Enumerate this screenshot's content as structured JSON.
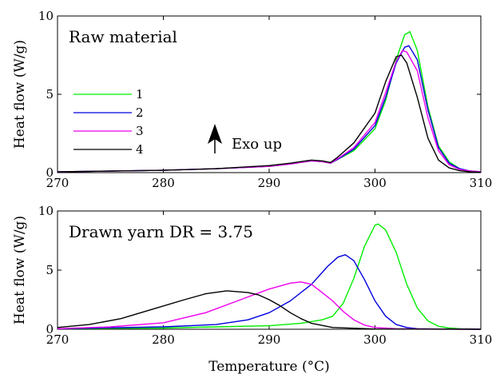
{
  "chart_data": [
    {
      "type": "line",
      "title": "Raw material",
      "xlabel": "",
      "ylabel": "Heat flow (W/g)",
      "xlim": [
        270,
        310
      ],
      "ylim": [
        0,
        10
      ],
      "xticks": [
        "270",
        "280",
        "290",
        "300",
        "310"
      ],
      "yticks": [
        "0",
        "5",
        "10"
      ],
      "legend_position": "left-middle",
      "annotation": "Exo up",
      "grid": false,
      "series": [
        {
          "name": "1",
          "color": "#00ee00",
          "x": [
            270,
            280,
            285,
            290,
            292,
            294,
            295,
            295.8,
            296.5,
            298,
            300,
            301,
            302,
            302.8,
            303.3,
            304,
            305,
            306,
            307,
            308,
            309,
            310
          ],
          "y": [
            0.05,
            0.15,
            0.25,
            0.4,
            0.55,
            0.75,
            0.7,
            0.6,
            0.85,
            1.4,
            2.8,
            4.6,
            7.2,
            8.8,
            9.0,
            7.8,
            4.2,
            1.7,
            0.7,
            0.25,
            0.1,
            0.05
          ]
        },
        {
          "name": "2",
          "color": "#0000dd",
          "x": [
            270,
            280,
            285,
            290,
            292,
            294,
            295,
            295.8,
            296.5,
            298,
            300,
            301,
            302,
            302.8,
            303.2,
            304,
            305,
            306,
            307,
            308,
            309,
            310
          ],
          "y": [
            0.05,
            0.15,
            0.25,
            0.4,
            0.55,
            0.75,
            0.7,
            0.6,
            0.85,
            1.5,
            3.0,
            4.8,
            7.0,
            8.0,
            8.1,
            7.2,
            4.0,
            1.6,
            0.6,
            0.25,
            0.1,
            0.05
          ]
        },
        {
          "name": "3",
          "color": "#ee00ee",
          "x": [
            270,
            280,
            285,
            290,
            292,
            294,
            295,
            295.8,
            296.5,
            298,
            300,
            301,
            302,
            302.6,
            303.0,
            304,
            305,
            306,
            307,
            308,
            309,
            310
          ],
          "y": [
            0.05,
            0.15,
            0.25,
            0.4,
            0.55,
            0.75,
            0.7,
            0.6,
            0.9,
            1.6,
            3.2,
            5.1,
            7.1,
            7.8,
            7.7,
            6.5,
            3.5,
            1.4,
            0.5,
            0.2,
            0.1,
            0.05
          ]
        },
        {
          "name": "4",
          "color": "#000000",
          "x": [
            270,
            280,
            285,
            290,
            292,
            294,
            295,
            295.8,
            296.5,
            298,
            300,
            301,
            302,
            302.5,
            303,
            304,
            305,
            306,
            307,
            308,
            309,
            310
          ],
          "y": [
            0.05,
            0.15,
            0.25,
            0.45,
            0.6,
            0.8,
            0.75,
            0.65,
            1.0,
            1.9,
            3.8,
            5.8,
            7.4,
            7.5,
            7.0,
            4.8,
            2.2,
            0.8,
            0.3,
            0.12,
            0.05,
            0.02
          ]
        }
      ]
    },
    {
      "type": "line",
      "title": "Drawn yarn DR = 3.75",
      "xlabel": "Temperature (°C)",
      "ylabel": "Heat flow (W/g)",
      "xlim": [
        270,
        310
      ],
      "ylim": [
        0,
        10
      ],
      "xticks": [
        "270",
        "280",
        "290",
        "300",
        "310"
      ],
      "yticks": [
        "0",
        "5",
        "10"
      ],
      "grid": false,
      "series": [
        {
          "name": "1",
          "color": "#00ee00",
          "x": [
            270,
            280,
            285,
            290,
            293,
            295,
            296,
            297,
            298,
            299,
            300,
            300.3,
            301,
            302,
            303,
            304,
            305,
            306,
            307,
            308,
            310
          ],
          "y": [
            0.05,
            0.1,
            0.2,
            0.3,
            0.5,
            0.8,
            1.1,
            2.2,
            4.3,
            7.0,
            8.8,
            8.9,
            8.4,
            6.5,
            3.8,
            1.8,
            0.7,
            0.25,
            0.1,
            0.05,
            0.02
          ]
        },
        {
          "name": "2",
          "color": "#0000dd",
          "x": [
            270,
            280,
            285,
            288,
            290,
            292,
            294,
            295.5,
            296.5,
            297.2,
            298,
            299,
            300,
            301,
            302,
            303,
            304,
            306,
            310
          ],
          "y": [
            0.05,
            0.2,
            0.4,
            0.8,
            1.4,
            2.4,
            3.8,
            5.3,
            6.1,
            6.3,
            5.8,
            4.2,
            2.4,
            1.1,
            0.4,
            0.15,
            0.05,
            0.02,
            0.0
          ]
        },
        {
          "name": "3",
          "color": "#ee00ee",
          "x": [
            270,
            275,
            280,
            284,
            287,
            290,
            292,
            293,
            294,
            295,
            296,
            297,
            298,
            299,
            300,
            302,
            305,
            310
          ],
          "y": [
            0.05,
            0.2,
            0.55,
            1.4,
            2.4,
            3.4,
            3.9,
            4.0,
            3.8,
            3.1,
            2.4,
            1.5,
            0.8,
            0.35,
            0.15,
            0.05,
            0.02,
            0.0
          ]
        },
        {
          "name": "4",
          "color": "#000000",
          "x": [
            270,
            273,
            276,
            279,
            282,
            284,
            286,
            288,
            289,
            290,
            291,
            292,
            293,
            294,
            296,
            300,
            310
          ],
          "y": [
            0.15,
            0.4,
            0.9,
            1.7,
            2.5,
            3.0,
            3.25,
            3.1,
            2.9,
            2.5,
            2.0,
            1.4,
            0.9,
            0.5,
            0.15,
            0.02,
            0.0
          ]
        }
      ]
    }
  ]
}
